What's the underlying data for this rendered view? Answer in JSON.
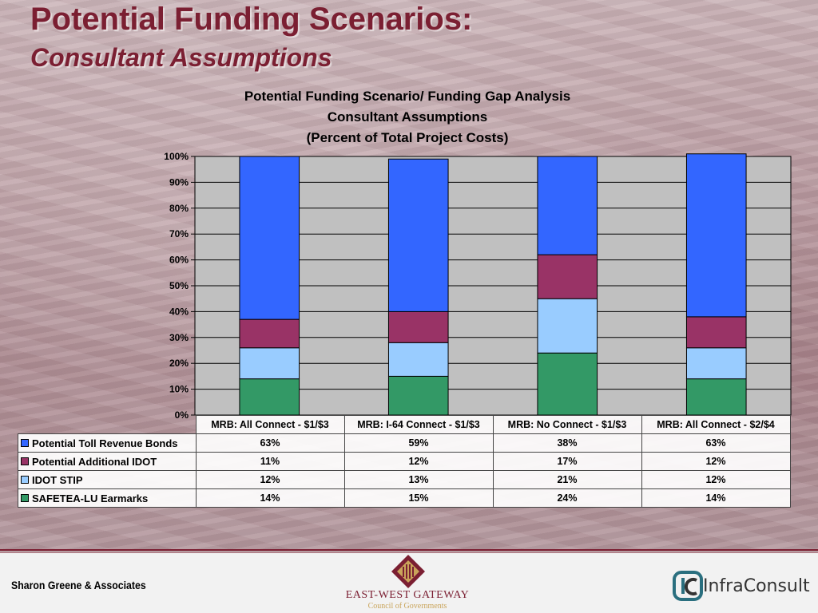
{
  "slide": {
    "title_line1": "Potential Funding Scenarios:",
    "title_line2": "Consultant Assumptions"
  },
  "chart_data": {
    "type": "bar",
    "stacked": true,
    "title_lines": [
      "Potential Funding Scenario/ Funding Gap Analysis",
      "Consultant Assumptions",
      "(Percent of Total Project Costs)"
    ],
    "categories": [
      "MRB: All Connect - $1/$3",
      "MRB: I-64 Connect - $1/$3",
      "MRB: No Connect - $1/$3",
      "MRB: All Connect - $2/$4"
    ],
    "series": [
      {
        "name": "Potential Toll Revenue Bonds",
        "color": "#3366ff",
        "values": [
          63,
          59,
          38,
          63
        ],
        "labels": [
          "63%",
          "59%",
          "38%",
          "63%"
        ]
      },
      {
        "name": "Potential Additional IDOT",
        "color": "#993366",
        "values": [
          11,
          12,
          17,
          12
        ],
        "labels": [
          "11%",
          "12%",
          "17%",
          "12%"
        ]
      },
      {
        "name": "IDOT STIP",
        "color": "#99ccff",
        "values": [
          12,
          13,
          21,
          12
        ],
        "labels": [
          "12%",
          "13%",
          "21%",
          "12%"
        ]
      },
      {
        "name": "SAFETEA-LU Earmarks",
        "color": "#339966",
        "values": [
          14,
          15,
          24,
          14
        ],
        "labels": [
          "14%",
          "15%",
          "24%",
          "14%"
        ]
      }
    ],
    "stack_order_bottom_to_top": [
      "SAFETEA-LU Earmarks",
      "IDOT STIP",
      "Potential Additional IDOT",
      "Potential Toll Revenue Bonds"
    ],
    "ylim": [
      0,
      100
    ],
    "yticks": [
      "0%",
      "10%",
      "20%",
      "30%",
      "40%",
      "50%",
      "60%",
      "70%",
      "80%",
      "90%",
      "100%"
    ],
    "grid": true,
    "plot_background": "#c0c0c0",
    "legend": "data-table"
  },
  "footer": {
    "left_text": "Sharon Greene & Associates",
    "center_name": "EAST-WEST GATEWAY",
    "center_sub": "Council of Governments",
    "right_text": "InfraConsult"
  }
}
